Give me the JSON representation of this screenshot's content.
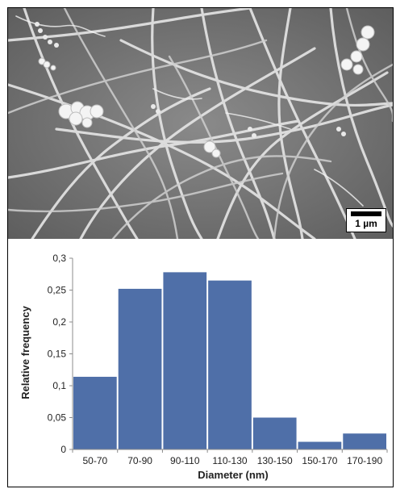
{
  "micrograph": {
    "scale_bar_label": "1 µm"
  },
  "chart_data": {
    "type": "bar",
    "categories": [
      "50-70",
      "70-90",
      "90-110",
      "110-130",
      "130-150",
      "150-170",
      "170-190"
    ],
    "values": [
      0.114,
      0.252,
      0.278,
      0.265,
      0.05,
      0.012,
      0.025
    ],
    "xlabel": "Diameter (nm)",
    "ylabel": "Relative frequency",
    "ylim": [
      0,
      0.3
    ],
    "yticks": [
      "0",
      "0,05",
      "0,1",
      "0,15",
      "0,2",
      "0,25",
      "0,3"
    ],
    "grid": false,
    "legend": "none",
    "bar_color": "#4f6fa8"
  }
}
